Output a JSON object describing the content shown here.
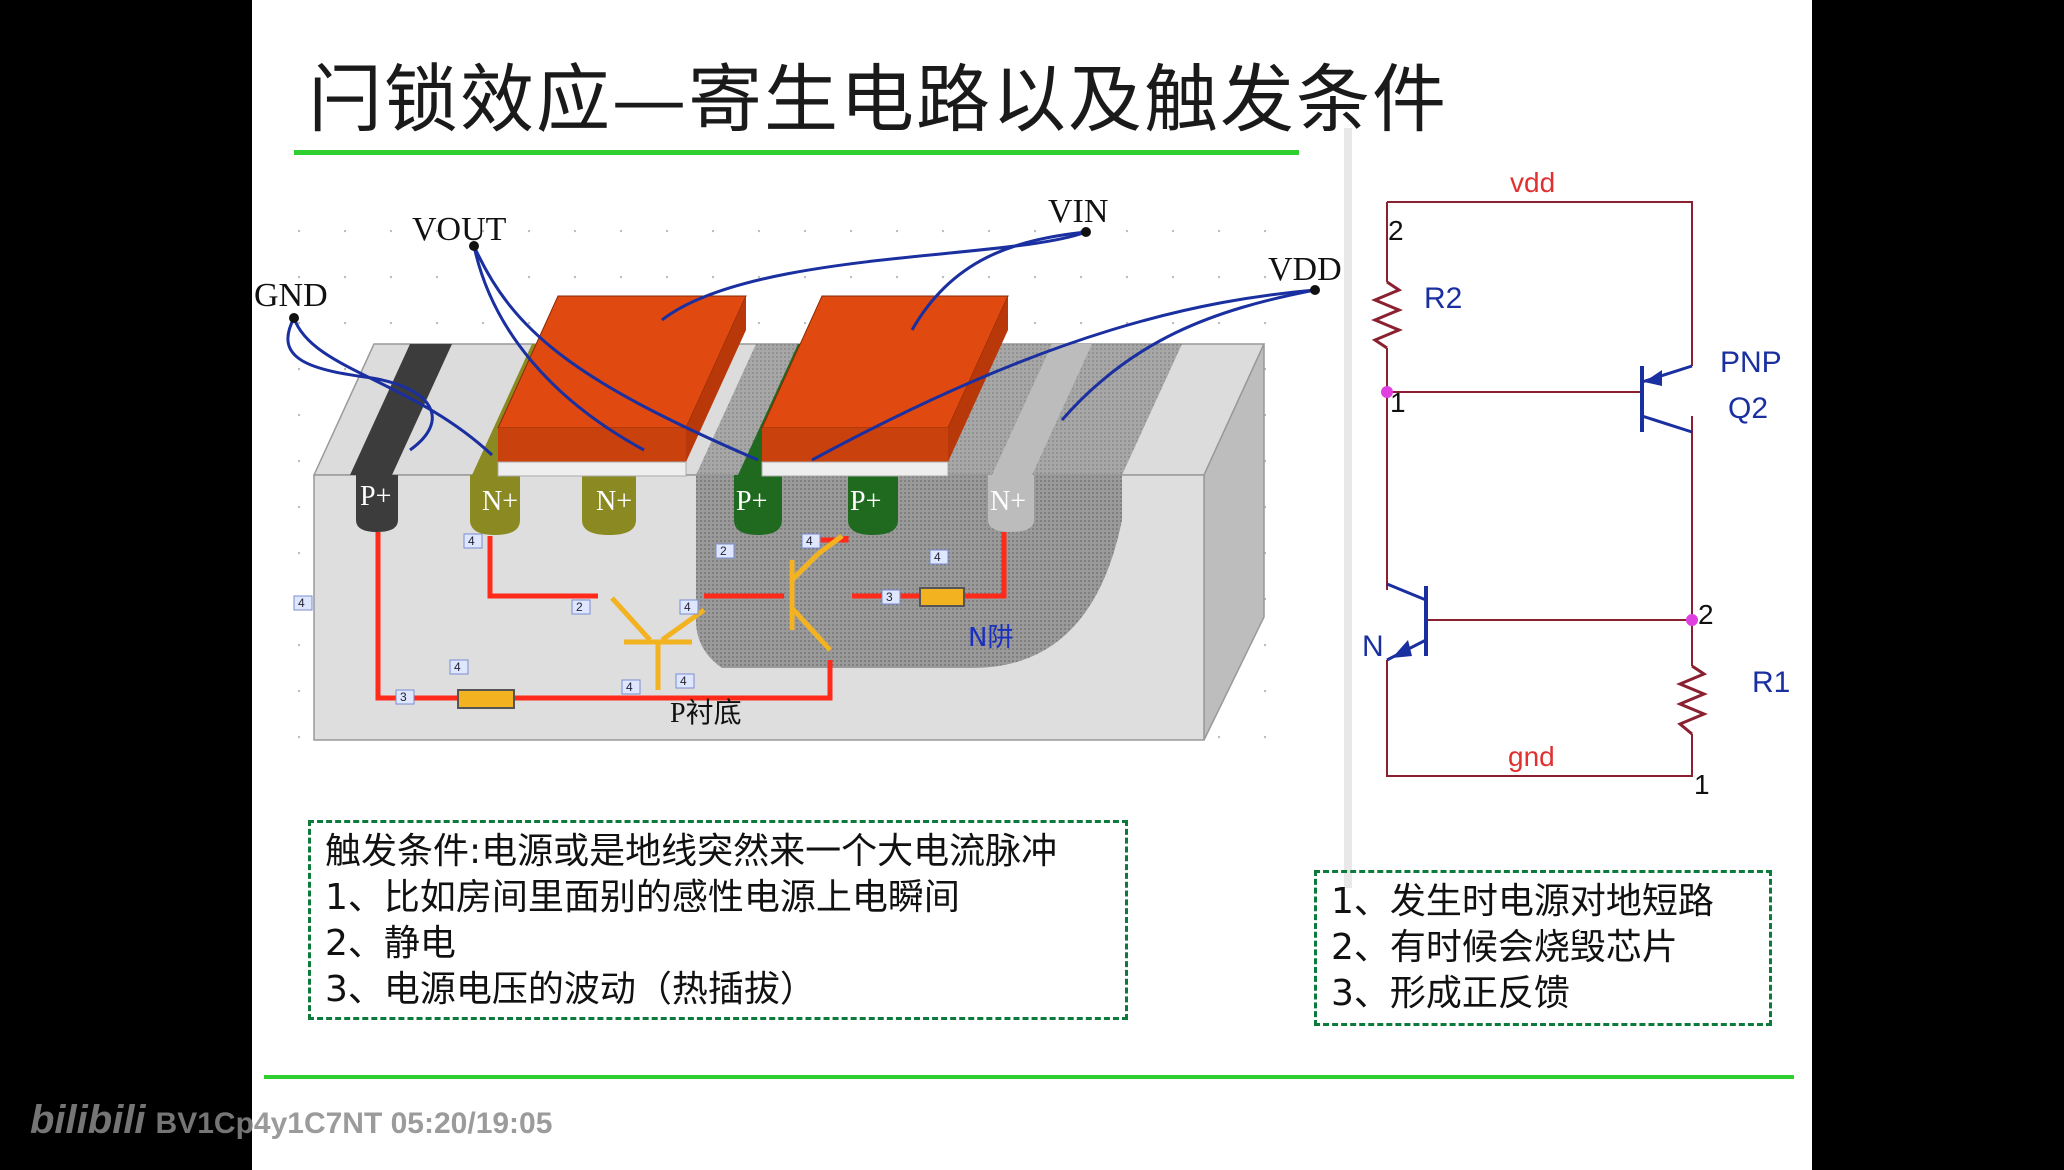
{
  "slide": {
    "title": "闩锁效应—寄生电路以及触发条件"
  },
  "cross_section": {
    "pins": {
      "gnd": "GND",
      "vout": "VOUT",
      "vin": "VIN",
      "vdd": "VDD"
    },
    "regions": {
      "p_plus_1": "P+",
      "n_plus_1": "N+",
      "n_plus_2": "N+",
      "p_plus_2": "P+",
      "p_plus_3": "P+",
      "n_plus_3": "N+"
    },
    "nwell_label": "N阱",
    "substrate_label": "P衬底",
    "node_tags": {
      "t1": "4",
      "t2": "4",
      "t3": "4",
      "t4": "2",
      "t5": "4",
      "t6": "2",
      "t7": "4",
      "t8": "4",
      "t9": "3",
      "t10": "3",
      "t11": "4",
      "t12": "4"
    }
  },
  "schematic": {
    "vdd": "vdd",
    "gnd": "gnd",
    "r2": "R2",
    "r1": "R1",
    "pnp": "PNP",
    "q2": "Q2",
    "n_label": "N",
    "pin_2_top": "2",
    "pin_1_left": "1",
    "pin_2_right": "2",
    "pin_1_bottom": "1"
  },
  "trigger_box": {
    "lines": [
      "触发条件:电源或是地线突然来一个大电流脉冲",
      "1、比如房间里面别的感性电源上电瞬间",
      "2、静电",
      "3、电源电压的波动（热插拔）"
    ]
  },
  "effect_box": {
    "lines": [
      "1、发生时电源对地短路",
      "2、有时候会烧毁芯片",
      "3、形成正反馈"
    ]
  },
  "watermark": {
    "logo": "bilibili",
    "text": "BV1Cp4y1C7NT 05:20/19:05"
  },
  "colors": {
    "accent_green": "#2fcf2f",
    "dashed_border": "#0b7a3a",
    "poly_orange": "#e04a10",
    "wire_red": "#ff2a1a",
    "transistor_yellow": "#f3b321",
    "circuit_wire": "#8a2030"
  }
}
